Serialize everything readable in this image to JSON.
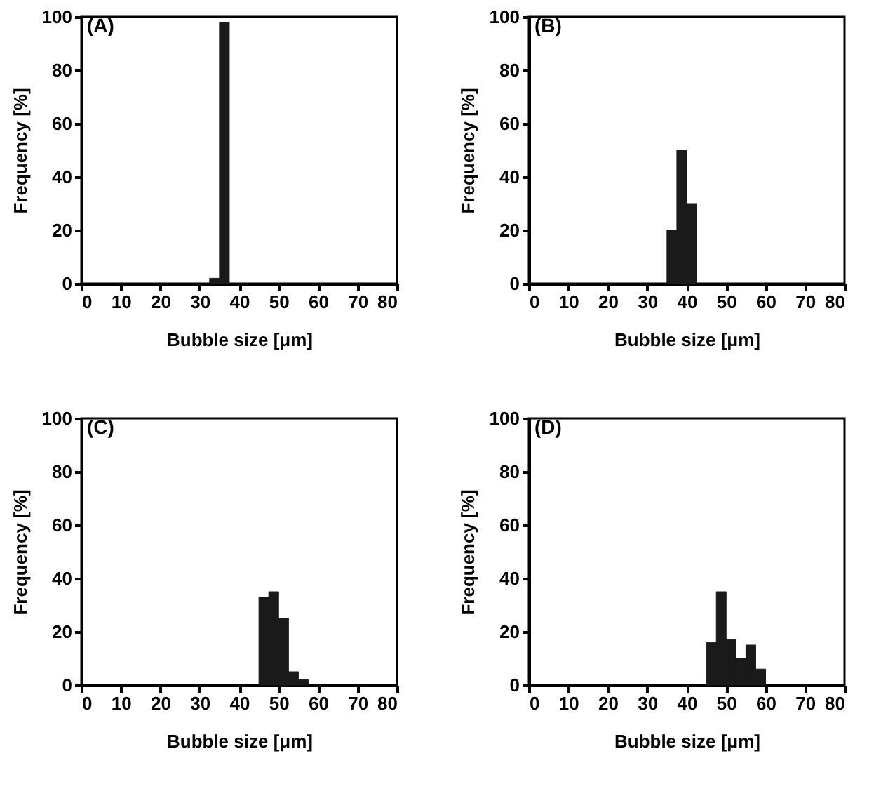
{
  "chart_data": [
    {
      "type": "histogram",
      "title": "(A)",
      "xlabel": "Bubble size [μm]",
      "ylabel": "Frequency [%]",
      "bins": [
        32.5,
        35,
        37.5
      ],
      "values": [
        2,
        98
      ],
      "color": "#1a1a1a",
      "xlim": [
        0,
        80
      ],
      "xticks": [
        0,
        10,
        20,
        30,
        40,
        50,
        60,
        70,
        80
      ],
      "ylim": [
        0,
        100
      ],
      "yticks": [
        0,
        20,
        40,
        60,
        80,
        100
      ]
    },
    {
      "type": "histogram",
      "title": "(B)",
      "xlabel": "Bubble size [μm]",
      "ylabel": "Frequency [%]",
      "bins": [
        35,
        37.5,
        40,
        42.5
      ],
      "values": [
        20,
        50,
        30
      ],
      "color": "#1a1a1a",
      "xlim": [
        0,
        80
      ],
      "xticks": [
        0,
        10,
        20,
        30,
        40,
        50,
        60,
        70,
        80
      ],
      "ylim": [
        0,
        100
      ],
      "yticks": [
        0,
        20,
        40,
        60,
        80,
        100
      ]
    },
    {
      "type": "histogram",
      "title": "(C)",
      "xlabel": "Bubble size [μm]",
      "ylabel": "Frequency [%]",
      "bins": [
        45,
        47.5,
        50,
        52.5,
        55,
        57.5
      ],
      "values": [
        33,
        35,
        25,
        5,
        2
      ],
      "color": "#1a1a1a",
      "xlim": [
        0,
        80
      ],
      "xticks": [
        0,
        10,
        20,
        30,
        40,
        50,
        60,
        70,
        80
      ],
      "ylim": [
        0,
        100
      ],
      "yticks": [
        0,
        20,
        40,
        60,
        80,
        100
      ]
    },
    {
      "type": "histogram",
      "title": "(D)",
      "xlabel": "Bubble size [μm]",
      "ylabel": "Frequency [%]",
      "bins": [
        45,
        47.5,
        50,
        52.5,
        55,
        57.5,
        60
      ],
      "values": [
        16,
        35,
        17,
        10,
        15,
        6
      ],
      "color": "#1a1a1a",
      "xlim": [
        0,
        80
      ],
      "xticks": [
        0,
        10,
        20,
        30,
        40,
        50,
        60,
        70,
        80
      ],
      "ylim": [
        0,
        100
      ],
      "yticks": [
        0,
        20,
        40,
        60,
        80,
        100
      ]
    }
  ]
}
